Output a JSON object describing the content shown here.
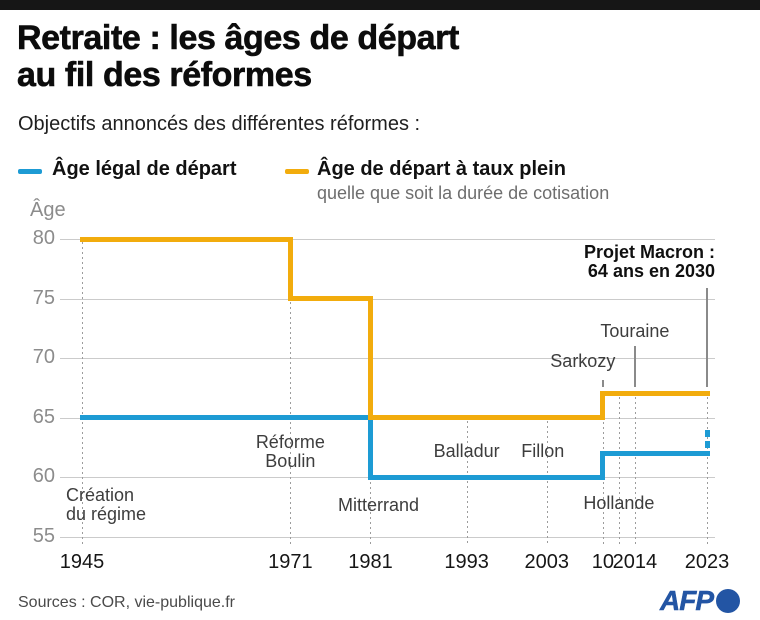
{
  "header": {
    "title_lines": [
      "Retraite : les âges de départ",
      "au fil des réformes"
    ],
    "subtitle": "Objectifs annoncés des différentes réformes :"
  },
  "legend": {
    "items": [
      {
        "label": "Âge légal de départ",
        "color": "#1d9bd4",
        "sublabel": ""
      },
      {
        "label": "Âge de départ à taux plein",
        "color": "#f2ac0d",
        "sublabel": "quelle que soit la durée de cotisation"
      }
    ]
  },
  "chart_data": {
    "type": "line",
    "step": true,
    "title": "",
    "xlabel": "",
    "ylabel": "Âge",
    "ylim": [
      55,
      80
    ],
    "yticks": [
      55,
      60,
      65,
      70,
      75,
      80
    ],
    "xlim": [
      1942,
      2024
    ],
    "grid": "horizontal",
    "legend_position": "top",
    "xticks": [
      {
        "year": 1945,
        "label": "1945"
      },
      {
        "year": 1971,
        "label": "1971"
      },
      {
        "year": 1981,
        "label": "1981"
      },
      {
        "year": 1993,
        "label": "1993"
      },
      {
        "year": 2003,
        "label": "2003"
      },
      {
        "year": 2010,
        "label": "10"
      },
      {
        "year": 2014,
        "label": "2014"
      },
      {
        "year": 2023,
        "label": "2023"
      }
    ],
    "guide_lines": [
      {
        "year": 1945,
        "top_age": 80
      },
      {
        "year": 1971,
        "top_age": 80
      },
      {
        "year": 1981,
        "top_age": 75
      },
      {
        "year": 1993,
        "top_age": 65
      },
      {
        "year": 2003,
        "top_age": 65
      },
      {
        "year": 2010,
        "top_age": 67
      },
      {
        "year": 2012,
        "top_age": 67
      },
      {
        "year": 2014,
        "top_age": 67
      },
      {
        "year": 2023,
        "top_age": 67
      }
    ],
    "series": [
      {
        "name": "Âge légal de départ",
        "slug": "legal-age",
        "color": "#1d9bd4",
        "points": [
          [
            1945,
            65
          ],
          [
            1981,
            65
          ],
          [
            1981,
            60
          ],
          [
            2010,
            60
          ],
          [
            2010,
            62
          ],
          [
            2023,
            62
          ]
        ],
        "projection": {
          "year": 2023,
          "from_age": 62,
          "to_age": 64,
          "style": "dashed"
        }
      },
      {
        "name": "Âge de départ à taux plein",
        "slug": "full-rate-age",
        "color": "#f2ac0d",
        "points": [
          [
            1945,
            80
          ],
          [
            1971,
            80
          ],
          [
            1971,
            75
          ],
          [
            1981,
            75
          ],
          [
            1981,
            65
          ],
          [
            2010,
            65
          ],
          [
            2010,
            67
          ],
          [
            2023,
            67
          ]
        ]
      }
    ],
    "annotations": [
      {
        "id": "creation-du-regime",
        "lines": [
          "Création",
          "du régime"
        ],
        "year": 1943,
        "age": 59.3,
        "align": "left",
        "bold": false
      },
      {
        "id": "reforme-boulin",
        "lines": [
          "Réforme",
          "Boulin"
        ],
        "year": 1971,
        "age": 63.7,
        "align": "center",
        "bold": false
      },
      {
        "id": "mitterrand",
        "lines": [
          "Mitterrand"
        ],
        "year": 1982,
        "age": 58.4,
        "align": "center",
        "bold": false
      },
      {
        "id": "balladur",
        "lines": [
          "Balladur"
        ],
        "year": 1993,
        "age": 63.0,
        "align": "center",
        "bold": false
      },
      {
        "id": "fillon",
        "lines": [
          "Fillon"
        ],
        "year": 2002.5,
        "age": 63.0,
        "align": "center",
        "bold": false
      },
      {
        "id": "hollande",
        "lines": [
          "Hollande"
        ],
        "year": 2012,
        "age": 58.6,
        "align": "center",
        "bold": false
      },
      {
        "id": "sarkozy",
        "lines": [
          "Sarkozy"
        ],
        "year": 2007.5,
        "age": 70.5,
        "align": "center",
        "bold": false,
        "pointer": {
          "year": 2010,
          "from_age": 68.2,
          "to_age": 67.6
        }
      },
      {
        "id": "touraine",
        "lines": [
          "Touraine"
        ],
        "year": 2014,
        "age": 73.0,
        "align": "center",
        "bold": false,
        "pointer": {
          "year": 2014,
          "from_age": 71.0,
          "to_age": 67.6
        }
      },
      {
        "id": "projet-macron",
        "lines": [
          "Projet Macron :",
          "64 ans en 2030"
        ],
        "year": 2024,
        "age": 79.7,
        "align": "right",
        "bold": true,
        "pointer": {
          "year": 2023,
          "from_age": 75.9,
          "to_age": 67.6
        }
      }
    ]
  },
  "footer": {
    "sources": "Sources : COR, vie-publique.fr",
    "logo_text": "AFP"
  },
  "colors": {
    "legal_age_line": "#1d9bd4",
    "full_rate_line": "#f2ac0d",
    "gridline": "#cbcbcb",
    "guide_dotted": "#9c9c9c",
    "pointer_line": "#8a8a8a",
    "y_tick_label": "#8c8c8c",
    "x_tick_label": "#161616",
    "annotation_text": "#3d3d3d",
    "afp_blue": "#2355a4",
    "top_bar": "#161616"
  }
}
